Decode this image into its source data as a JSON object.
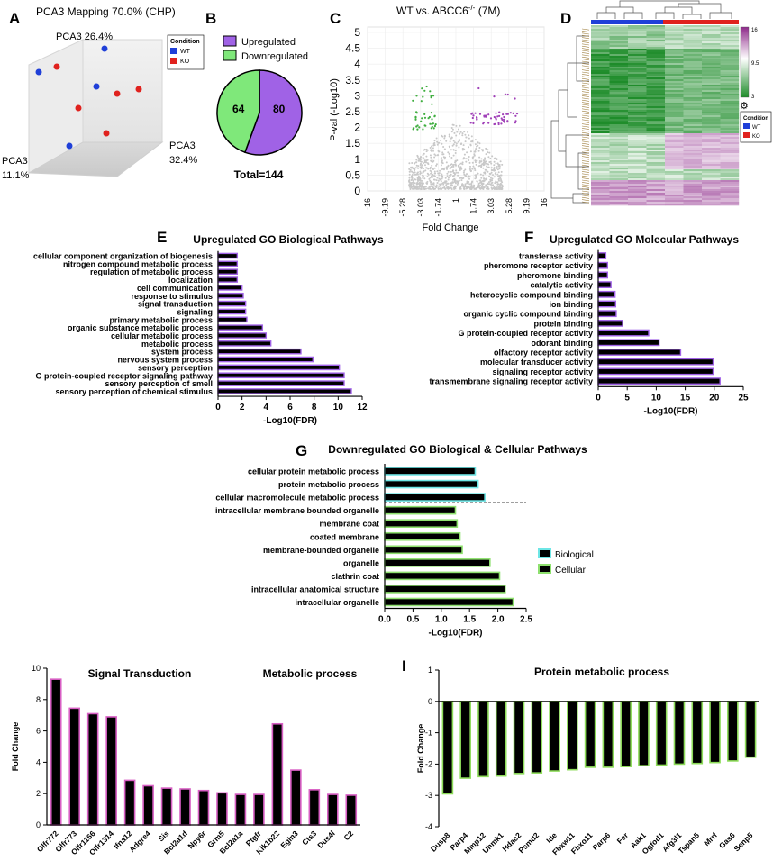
{
  "colors": {
    "wt": "#1f3fd8",
    "ko": "#e0221e",
    "purple": "#a062e6",
    "green": "#7fe87a",
    "cyan_edge": "#6ee6e6",
    "green_edge": "#8ee06e",
    "pink_edge": "#d85fc4",
    "lime_edge": "#8edc5a",
    "volcano_grey": "#c8c8c8",
    "volcano_green": "#3fae3f",
    "volcano_purple": "#a040b8"
  },
  "panels": {
    "A": {
      "letter": "A",
      "title": "PCA3 Mapping 70.0% (CHP)",
      "axis1": "PCA3 26.4%",
      "axis2_l1": "PCA3",
      "axis2_l2": "32.4%",
      "axis3_l1": "PCA3",
      "axis3_l2": "11.1%",
      "legend_title": "Condition",
      "legend_wt": "WT",
      "legend_ko": "KO"
    },
    "B": {
      "letter": "B",
      "legend_up": "Upregulated",
      "legend_down": "Downregulated",
      "label_down": "64",
      "label_up": "80",
      "total": "Total=144"
    },
    "C": {
      "letter": "C",
      "title_main": "WT vs. ABCC6",
      "title_sup": "-/-",
      "title_tail": " (7M)",
      "ylabel": "P-val (-Log10)",
      "xlabel": "Fold Change",
      "yticks": [
        "0",
        "0.5",
        "1",
        "1.5",
        "2",
        "2.5",
        "3",
        "3.5",
        "4",
        "4.5",
        "5"
      ],
      "xticks": [
        "-16",
        "-9.19",
        "-5.28",
        "-3.03",
        "-1.74",
        "1",
        "1.74",
        "3.03",
        "5.28",
        "9.19",
        "16"
      ]
    },
    "D": {
      "letter": "D",
      "scale_max": "16",
      "scale_mid": "9.5",
      "scale_min": "3",
      "legend_title": "Condition",
      "legend_wt": "WT",
      "legend_ko": "KO"
    },
    "E": {
      "letter": "E"
    },
    "F": {
      "letter": "F"
    },
    "G": {
      "letter": "G"
    },
    "H": {
      "ylabel": "Fold Change"
    },
    "I": {
      "letter": "I"
    }
  },
  "chart_data": [
    {
      "id": "B",
      "type": "pie",
      "slices": [
        {
          "label": "Upregulated",
          "value": 80
        },
        {
          "label": "Downregulated",
          "value": 64
        }
      ],
      "total": 144
    },
    {
      "id": "E",
      "type": "bar",
      "orientation": "horizontal",
      "title": "Upregulated GO Biological Pathways",
      "xlabel": "-Log10(FDR)",
      "xlim": [
        0,
        12
      ],
      "xticks": [
        "0",
        "2",
        "4",
        "6",
        "8",
        "10",
        "12"
      ],
      "categories": [
        "cellular component organization of biogenesis",
        "nitrogen compound metabolic process",
        "regulation of metabolic process",
        "localization",
        "cell communication",
        "response to stimulus",
        "signal transduction",
        "signaling",
        "primary metabolic process",
        "organic substance metabolic process",
        "cellular metabolic process",
        "metabolic process",
        "system process",
        "nervous system process",
        "sensory perception",
        "G protein-coupled receptor signaling pathway",
        "sensory perception of smell",
        "sensory perception of chemical stimulus"
      ],
      "values": [
        1.6,
        1.6,
        1.6,
        1.6,
        2.0,
        2.1,
        2.3,
        2.3,
        2.4,
        3.7,
        4.0,
        4.4,
        6.9,
        7.9,
        10.1,
        10.5,
        10.5,
        11.1
      ]
    },
    {
      "id": "F",
      "type": "bar",
      "orientation": "horizontal",
      "title": "Upregulated GO Molecular Pathways",
      "xlabel": "-Log10(FDR)",
      "xlim": [
        0,
        25
      ],
      "xticks": [
        "0",
        "5",
        "10",
        "15",
        "20",
        "25"
      ],
      "categories": [
        "transferase activity",
        "pheromone receptor activity",
        "pheromone binding",
        "catalytic activity",
        "heterocyclic compound binding",
        "ion binding",
        "organic cyclic compound binding",
        "protein binding",
        "G protein-coupled receptor activity",
        "odorant binding",
        "olfactory receptor activity",
        "molecular transducer activity",
        "signaling receptor activity",
        "transmembrane signaling receptor activity"
      ],
      "values": [
        1.3,
        1.6,
        1.6,
        2.2,
        2.9,
        3.0,
        3.1,
        4.2,
        8.7,
        10.5,
        14.2,
        19.8,
        19.8,
        21.0
      ]
    },
    {
      "id": "G",
      "type": "bar",
      "orientation": "horizontal",
      "title": "Downregulated GO Biological & Cellular Pathways",
      "xlabel": "-Log10(FDR)",
      "xlim": [
        0,
        2.5
      ],
      "xticks": [
        "0.0",
        "0.5",
        "1.0",
        "1.5",
        "2.0",
        "2.5"
      ],
      "legend": [
        "Biological",
        "Cellular"
      ],
      "categories": [
        "cellular protein metabolic process",
        "protein metabolic process",
        "cellular macromolecule metabolic process",
        "intracellular membrane bounded organelle",
        "membrane coat",
        "coated membrane",
        "membrane-bounded organelle",
        "organelle",
        "clathrin coat",
        "intracellular anatomical structure",
        "intracellular organelle"
      ],
      "groups": [
        "Biological",
        "Biological",
        "Biological",
        "Cellular",
        "Cellular",
        "Cellular",
        "Cellular",
        "Cellular",
        "Cellular",
        "Cellular",
        "Cellular"
      ],
      "values": [
        1.6,
        1.65,
        1.77,
        1.25,
        1.28,
        1.33,
        1.37,
        1.86,
        2.03,
        2.13,
        2.27
      ]
    },
    {
      "id": "H",
      "type": "bar",
      "ylabel": "Fold Change",
      "ylim": [
        0,
        10
      ],
      "yticks": [
        "0",
        "2",
        "4",
        "6",
        "8",
        "10"
      ],
      "group_labels": [
        "Signal Transduction",
        "Metabolic process"
      ],
      "categories": [
        "Olfr772",
        "Olfr773",
        "Olfr1166",
        "Olfr1314",
        "Ifna12",
        "Adgre4",
        "Sis",
        "Bcl2a1d",
        "Npy6r",
        "Grm5",
        "Bcl2a1a",
        "Ptgfr",
        "Klk1b22",
        "Egln3",
        "Cts3",
        "Dus4l",
        "C2"
      ],
      "values": [
        9.3,
        7.45,
        7.1,
        6.9,
        2.85,
        2.5,
        2.35,
        2.3,
        2.2,
        2.05,
        1.95,
        1.95,
        6.45,
        3.5,
        2.25,
        1.95,
        1.9
      ]
    },
    {
      "id": "I",
      "type": "bar",
      "title": "Protein metabolic process",
      "ylabel": "Fold Change",
      "ylim": [
        -4,
        1
      ],
      "yticks": [
        "1",
        "0",
        "-1",
        "-2",
        "-3",
        "-4"
      ],
      "categories": [
        "Dusp8",
        "Parp4",
        "Mmp12",
        "Uhmk1",
        "Hdac2",
        "Psmd2",
        "Ide",
        "Fbxw11",
        "Fbxo11",
        "Parp6",
        "Fer",
        "Aak1",
        "Ogfod1",
        "Afg3l1",
        "Tspan5",
        "Mrrf",
        "Gas6",
        "Senp5"
      ],
      "values": [
        -2.95,
        -2.45,
        -2.4,
        -2.38,
        -2.3,
        -2.28,
        -2.22,
        -2.18,
        -2.1,
        -2.1,
        -2.08,
        -2.05,
        -2.03,
        -2.0,
        -1.98,
        -1.95,
        -1.9,
        -1.78
      ]
    }
  ]
}
